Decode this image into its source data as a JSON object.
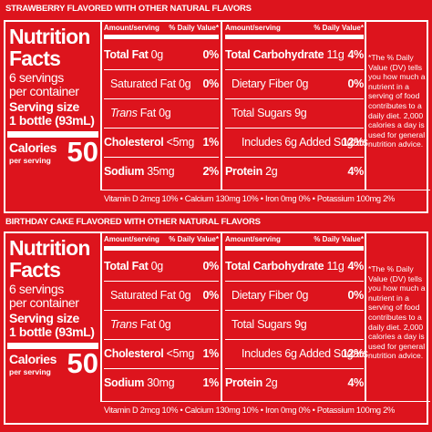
{
  "panels": [
    {
      "flavor": "STRAWBERRY FLAVORED WITH OTHER NATURAL FLAVORS",
      "title": [
        "Nutrition",
        "Facts"
      ],
      "servings": [
        "6 servings",
        "per container"
      ],
      "serving_size_label": "Serving size",
      "serving_size": "1 bottle (93mL)",
      "calories_label": "Calories",
      "calories_sub": "per serving",
      "calories": "50",
      "tables": [
        {
          "header_amount": "Amount/serving",
          "header_dv": "% Daily Value*",
          "rows": [
            {
              "label": "Total Fat",
              "amount": "0g",
              "dv": "0%",
              "bold": true
            },
            {
              "label": "Saturated Fat",
              "amount": "0g",
              "dv": "0%"
            },
            {
              "italic": "Trans",
              "label": "Fat",
              "amount": "0g"
            },
            {
              "label": "Cholesterol",
              "amount": "<5mg",
              "dv": "1%",
              "bold": true
            },
            {
              "label": "Sodium",
              "amount": "35mg",
              "dv": "2%",
              "bold": true
            }
          ]
        },
        {
          "header_amount": "Amount/serving",
          "header_dv": "% Daily Value*",
          "rows": [
            {
              "label": "Total Carbohydrate",
              "amount": "11g",
              "dv": "4%",
              "bold": true
            },
            {
              "label": "Dietary Fiber",
              "amount": "0g",
              "dv": "0%"
            },
            {
              "label": "Total Sugars",
              "amount": "9g"
            },
            {
              "label": "Includes 6g Added Sugars",
              "dv": "12%"
            },
            {
              "label": "Protein",
              "amount": "2g",
              "dv": "4%",
              "bold": true
            }
          ]
        }
      ],
      "vitamins": "Vitamin D 2mcg 10% • Calcium 130mg 10% • Iron 0mg 0% • Potassium 100mg 2%",
      "footnote": "*The % Daily Value (DV) tells you how much a nutrient in a serving of food contributes to a daily diet. 2,000 calories a day is used for general nutrition advice."
    },
    {
      "flavor": "BIRTHDAY CAKE FLAVORED WITH OTHER NATURAL FLAVORS",
      "title": [
        "Nutrition",
        "Facts"
      ],
      "servings": [
        "6 servings",
        "per container"
      ],
      "serving_size_label": "Serving size",
      "serving_size": "1 bottle (93mL)",
      "calories_label": "Calories",
      "calories_sub": "per serving",
      "calories": "50",
      "tables": [
        {
          "header_amount": "Amount/serving",
          "header_dv": "% Daily Value*",
          "rows": [
            {
              "label": "Total Fat",
              "amount": "0g",
              "dv": "0%",
              "bold": true
            },
            {
              "label": "Saturated Fat",
              "amount": "0g",
              "dv": "0%"
            },
            {
              "italic": "Trans",
              "label": "Fat",
              "amount": "0g"
            },
            {
              "label": "Cholesterol",
              "amount": "<5mg",
              "dv": "1%",
              "bold": true
            },
            {
              "label": "Sodium",
              "amount": "30mg",
              "dv": "1%",
              "bold": true
            }
          ]
        },
        {
          "header_amount": "Amount/serving",
          "header_dv": "% Daily Value*",
          "rows": [
            {
              "label": "Total Carbohydrate",
              "amount": "11g",
              "dv": "4%",
              "bold": true
            },
            {
              "label": "Dietary Fiber",
              "amount": "0g",
              "dv": "0%"
            },
            {
              "label": "Total Sugars",
              "amount": "9g"
            },
            {
              "label": "Includes 6g Added Sugars",
              "dv": "12%"
            },
            {
              "label": "Protein",
              "amount": "2g",
              "dv": "4%",
              "bold": true
            }
          ]
        }
      ],
      "vitamins": "Vitamin D 2mcg 10% • Calcium 130mg 10% • Iron 0mg 0% • Potassium 100mg 2%",
      "footnote": "*The % Daily Value (DV) tells you how much a nutrient in a serving of food contributes to a daily diet. 2,000 calories a day is used for general nutrition advice."
    }
  ]
}
